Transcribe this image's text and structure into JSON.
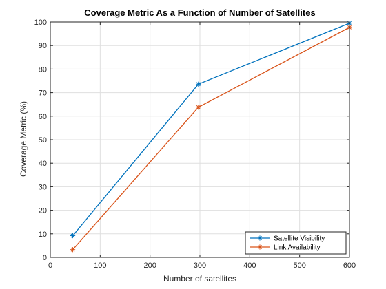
{
  "chart_data": {
    "type": "line",
    "title": "Coverage Metric As a Function of Number of Satellites",
    "xlabel": "Number of satellites",
    "ylabel": "Coverage Metric (%)",
    "xlim": [
      0,
      600
    ],
    "ylim": [
      0,
      100
    ],
    "xticks": [
      0,
      100,
      200,
      300,
      400,
      500,
      600
    ],
    "yticks": [
      0,
      10,
      20,
      30,
      40,
      50,
      60,
      70,
      80,
      90,
      100
    ],
    "grid": true,
    "legend_position": "bottom-right",
    "series": [
      {
        "name": "Satellite Visibility",
        "color": "#0072BD",
        "marker": "asterisk",
        "x": [
          45,
          297,
          600
        ],
        "y": [
          9.2,
          73.6,
          99.5
        ]
      },
      {
        "name": "Link Availability",
        "color": "#D95319",
        "marker": "asterisk",
        "x": [
          45,
          297,
          600
        ],
        "y": [
          3.3,
          63.8,
          97.7
        ]
      }
    ]
  }
}
